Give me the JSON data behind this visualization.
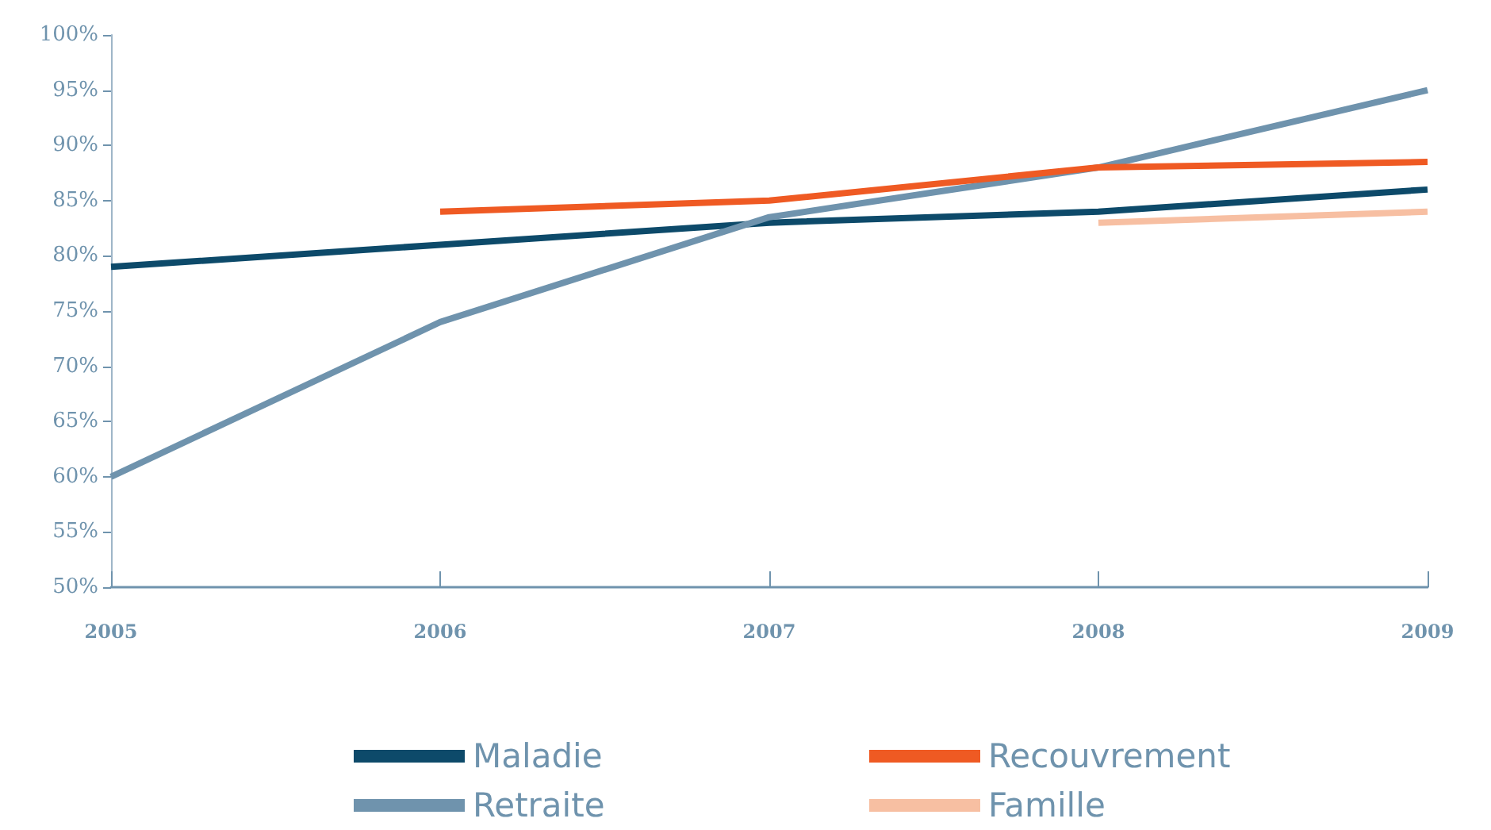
{
  "chart_data": {
    "type": "line",
    "categories": [
      "2005",
      "2006",
      "2007",
      "2008",
      "2009"
    ],
    "series": [
      {
        "name": "Maladie",
        "color": "#0d4a6a",
        "values": [
          79,
          81,
          83,
          84,
          86
        ]
      },
      {
        "name": "Retraite",
        "color": "#6f93ad",
        "values": [
          60,
          74,
          83.5,
          88,
          95
        ]
      },
      {
        "name": "Recouvrement",
        "color": "#ef5a23",
        "values": [
          null,
          84,
          85,
          88,
          88.5
        ]
      },
      {
        "name": "Famille",
        "color": "#f7bfa2",
        "values": [
          null,
          null,
          null,
          83,
          84
        ]
      }
    ],
    "ylim": [
      50,
      100
    ],
    "yticks": [
      {
        "value": 50,
        "label": "50%"
      },
      {
        "value": 55,
        "label": "55%"
      },
      {
        "value": 60,
        "label": "60%"
      },
      {
        "value": 65,
        "label": "65%"
      },
      {
        "value": 70,
        "label": "70%"
      },
      {
        "value": 75,
        "label": "75%"
      },
      {
        "value": 80,
        "label": "80%"
      },
      {
        "value": 85,
        "label": "85%"
      },
      {
        "value": 90,
        "label": "90%"
      },
      {
        "value": 95,
        "label": "95%"
      },
      {
        "value": 100,
        "label": "100%"
      }
    ],
    "grid": false,
    "legend": "bottom",
    "marker": "none",
    "line_style": "solid"
  }
}
